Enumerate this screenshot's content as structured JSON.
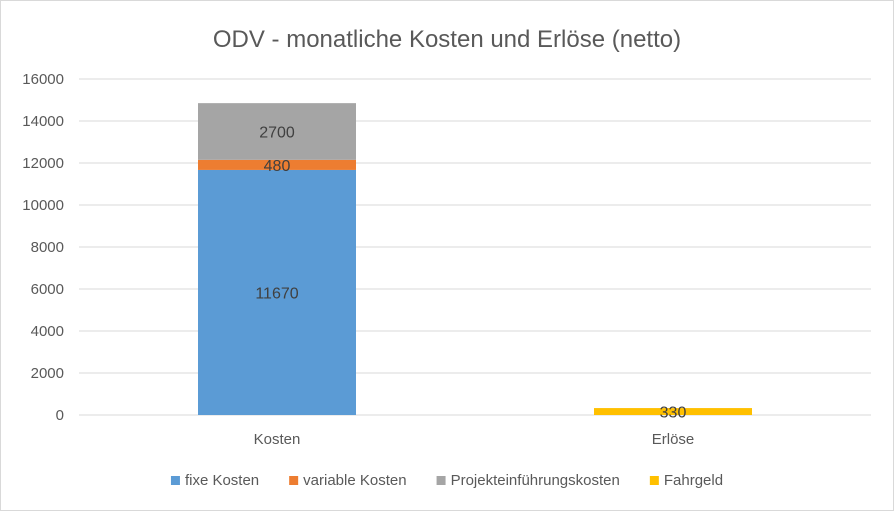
{
  "chart_data": {
    "type": "bar",
    "stacked": true,
    "title": "ODV - monatliche Kosten und Erlöse (netto)",
    "xlabel": "",
    "ylabel": "",
    "categories": [
      "Kosten",
      "Erlöse"
    ],
    "ylim": [
      0,
      16000
    ],
    "yticks": [
      0,
      2000,
      4000,
      6000,
      8000,
      10000,
      12000,
      14000,
      16000
    ],
    "grid": true,
    "legend_position": "bottom",
    "series": [
      {
        "name": "fixe Kosten",
        "values": [
          11670,
          0
        ],
        "color": "#5B9BD5",
        "labels": [
          "11670",
          ""
        ]
      },
      {
        "name": "variable Kosten",
        "values": [
          480,
          0
        ],
        "color": "#ED7D31",
        "labels": [
          "480",
          ""
        ]
      },
      {
        "name": "Projekteinführungskosten",
        "values": [
          2700,
          0
        ],
        "color": "#A5A5A5",
        "labels": [
          "2700",
          ""
        ]
      },
      {
        "name": "Fahrgeld",
        "values": [
          0,
          330
        ],
        "color": "#FFC000",
        "labels": [
          "",
          "330"
        ]
      }
    ]
  }
}
